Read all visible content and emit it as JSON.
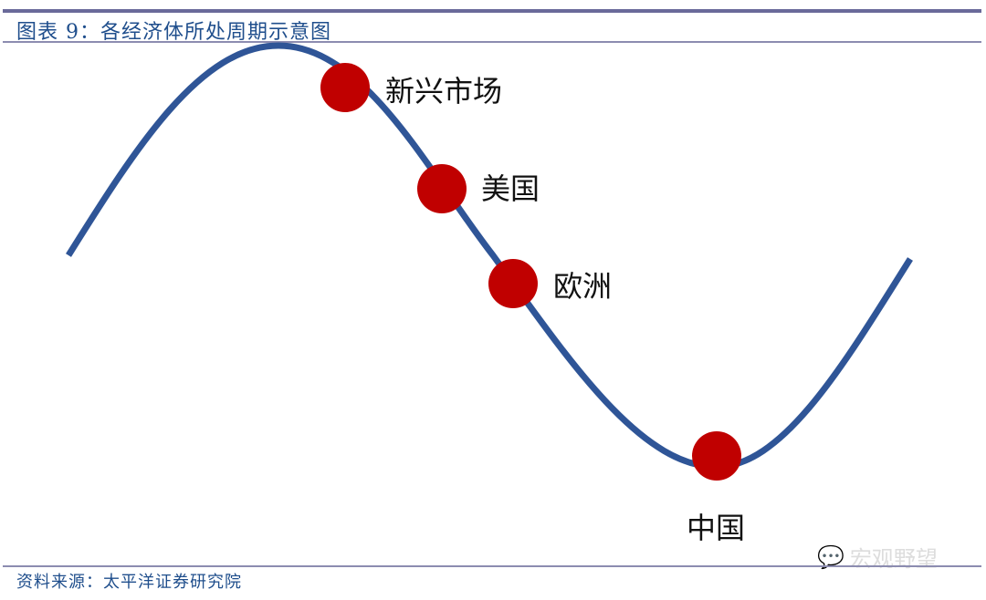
{
  "header": {
    "title": "图表 9：各经济体所处周期示意图"
  },
  "diagram": {
    "curve_color": "#2f5597",
    "dot_color": "#c00000",
    "points": [
      {
        "label": "新兴市场"
      },
      {
        "label": "美国"
      },
      {
        "label": "欧洲"
      },
      {
        "label": "中国"
      }
    ]
  },
  "footer": {
    "source": "资料来源：太平洋证券研究院",
    "watermark": "宏观野望",
    "watermark_icon": "wechat-icon"
  }
}
